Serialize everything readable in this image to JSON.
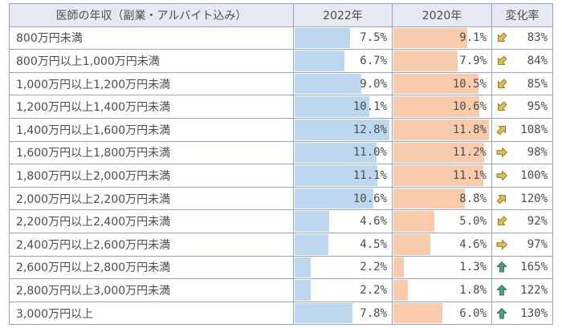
{
  "colors": {
    "bar_2022": "#bdd7ee",
    "bar_2020": "#f8cbad",
    "header_bg": "#e6e9f3",
    "border": "#9aa4c2",
    "text": "#4d4d4d",
    "gold_icon": "#dfbc5c",
    "gold_icon_stroke": "#a0801e",
    "green_icon": "#4ca57a",
    "green_icon_stroke": "#2f7154"
  },
  "table": {
    "headers": [
      "医師の年収（副業・アルバイト込み）",
      "2022年",
      "2020年",
      "変化率"
    ],
    "rows": [
      {
        "label": "800万円未満",
        "v2022": 7.5,
        "v2020": 9.1,
        "v2022_label": "7.5%",
        "v2020_label": "9.1%",
        "rate_label": "83%",
        "icon": "arrow-down-left"
      },
      {
        "label": "800万円以上1,000万円未満",
        "v2022": 6.7,
        "v2020": 7.9,
        "v2022_label": "6.7%",
        "v2020_label": "7.9%",
        "rate_label": "84%",
        "icon": "arrow-down-left"
      },
      {
        "label": "1,000万円以上1,200万円未満",
        "v2022": 9.0,
        "v2020": 10.5,
        "v2022_label": "9.0%",
        "v2020_label": "10.5%",
        "rate_label": "85%",
        "icon": "arrow-down-left"
      },
      {
        "label": "1,200万円以上1,400万円未満",
        "v2022": 10.1,
        "v2020": 10.6,
        "v2022_label": "10.1%",
        "v2020_label": "10.6%",
        "rate_label": "95%",
        "icon": "arrow-down-left"
      },
      {
        "label": "1,400万円以上1,600万円未満",
        "v2022": 12.8,
        "v2020": 11.8,
        "v2022_label": "12.8%",
        "v2020_label": "11.8%",
        "rate_label": "108%",
        "icon": "arrow-up-right"
      },
      {
        "label": "1,600万円以上1,800万円未満",
        "v2022": 11.0,
        "v2020": 11.2,
        "v2022_label": "11.0%",
        "v2020_label": "11.2%",
        "rate_label": "98%",
        "icon": "arrow-right"
      },
      {
        "label": "1,800万円以上2,000万円未満",
        "v2022": 11.1,
        "v2020": 11.1,
        "v2022_label": "11.1%",
        "v2020_label": "11.1%",
        "rate_label": "100%",
        "icon": "arrow-right"
      },
      {
        "label": "2,000万円以上2,200万円未満",
        "v2022": 10.6,
        "v2020": 8.8,
        "v2022_label": "10.6%",
        "v2020_label": "8.8%",
        "rate_label": "120%",
        "icon": "arrow-up-right"
      },
      {
        "label": "2,200万円以上2,400万円未満",
        "v2022": 4.6,
        "v2020": 5.0,
        "v2022_label": "4.6%",
        "v2020_label": "5.0%",
        "rate_label": "92%",
        "icon": "arrow-down-left"
      },
      {
        "label": "2,400万円以上2,600万円未満",
        "v2022": 4.5,
        "v2020": 4.6,
        "v2022_label": "4.5%",
        "v2020_label": "4.6%",
        "rate_label": "97%",
        "icon": "arrow-right"
      },
      {
        "label": "2,600万円以上2,800万円未満",
        "v2022": 2.2,
        "v2020": 1.3,
        "v2022_label": "2.2%",
        "v2020_label": "1.3%",
        "rate_label": "165%",
        "icon": "arrow-up"
      },
      {
        "label": "2,800万円以上3,000万円未満",
        "v2022": 2.2,
        "v2020": 1.8,
        "v2022_label": "2.2%",
        "v2020_label": "1.8%",
        "rate_label": "122%",
        "icon": "arrow-up"
      },
      {
        "label": "3,000万円以上",
        "v2022": 7.8,
        "v2020": 6.0,
        "v2022_label": "7.8%",
        "v2020_label": "6.0%",
        "rate_label": "130%",
        "icon": "arrow-up"
      }
    ]
  },
  "chart_data": {
    "type": "table",
    "title": "医師の年収（副業・アルバイト込み）",
    "columns": [
      "医師の年収（副業・アルバイト込み）",
      "2022年",
      "2020年",
      "変化率"
    ],
    "categories": [
      "800万円未満",
      "800万円以上1,000万円未満",
      "1,000万円以上1,200万円未満",
      "1,200万円以上1,400万円未満",
      "1,400万円以上1,600万円未満",
      "1,600万円以上1,800万円未満",
      "1,800万円以上2,000万円未満",
      "2,000万円以上2,200万円未満",
      "2,200万円以上2,400万円未満",
      "2,400万円以上2,600万円未満",
      "2,600万円以上2,800万円未満",
      "2,800万円以上3,000万円未満",
      "3,000万円以上"
    ],
    "series": [
      {
        "name": "2022年",
        "unit": "%",
        "bar_color": "#bdd7ee",
        "values": [
          7.5,
          6.7,
          9.0,
          10.1,
          12.8,
          11.0,
          11.1,
          10.6,
          4.6,
          4.5,
          2.2,
          2.2,
          7.8
        ]
      },
      {
        "name": "2020年",
        "unit": "%",
        "bar_color": "#f8cbad",
        "values": [
          9.1,
          7.9,
          10.5,
          10.6,
          11.8,
          11.2,
          11.1,
          8.8,
          5.0,
          4.6,
          1.3,
          1.8,
          6.0
        ]
      }
    ],
    "change_rate": {
      "name": "変化率",
      "unit": "%",
      "values": [
        83,
        84,
        85,
        95,
        108,
        98,
        100,
        120,
        92,
        97,
        165,
        122,
        130
      ],
      "icons": [
        "arrow-down-left",
        "arrow-down-left",
        "arrow-down-left",
        "arrow-down-left",
        "arrow-up-right",
        "arrow-right",
        "arrow-right",
        "arrow-up-right",
        "arrow-down-left",
        "arrow-right",
        "arrow-up",
        "arrow-up",
        "arrow-up"
      ]
    },
    "layout_hints": {
      "bars_embedded_in_cells": true,
      "bar_scale": "each year column scaled to its own max value (2022: 12.8, 2020: 11.8)",
      "value_alignment": "right"
    }
  }
}
